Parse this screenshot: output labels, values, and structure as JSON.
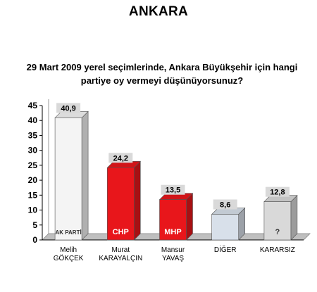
{
  "chart_data": {
    "type": "bar",
    "title": "ANKARA",
    "subtitle_lines": [
      "29 Mart 2009 yerel seçimlerinde, Ankara Büyükşehir için hangi",
      "partiye oy vermeyi düşünüyorsunuz?"
    ],
    "categories": [
      [
        "Melih",
        "GÖKÇEK"
      ],
      [
        "Murat",
        "KARAYALÇIN"
      ],
      [
        "Mansur",
        "YAVAŞ"
      ],
      [
        "DİĞER"
      ],
      [
        "KARARSIZ"
      ]
    ],
    "values": [
      40.9,
      24.2,
      13.5,
      8.6,
      12.8
    ],
    "value_labels": [
      "40,9",
      "24,2",
      "13,5",
      "8,6",
      "12,8"
    ],
    "bar_marks": [
      "AK PARTİ",
      "CHP",
      "MHP",
      "",
      "?"
    ],
    "ylim": [
      0,
      45
    ],
    "yticks": [
      "0",
      "5",
      "10",
      "15",
      "20",
      "25",
      "30",
      "35",
      "40",
      "45"
    ],
    "grid": false,
    "legend": "none",
    "colors": [
      "#f4f4f4",
      "#e8161b",
      "#e8161b",
      "#d8e0ea",
      "#d9d9d9"
    ]
  }
}
